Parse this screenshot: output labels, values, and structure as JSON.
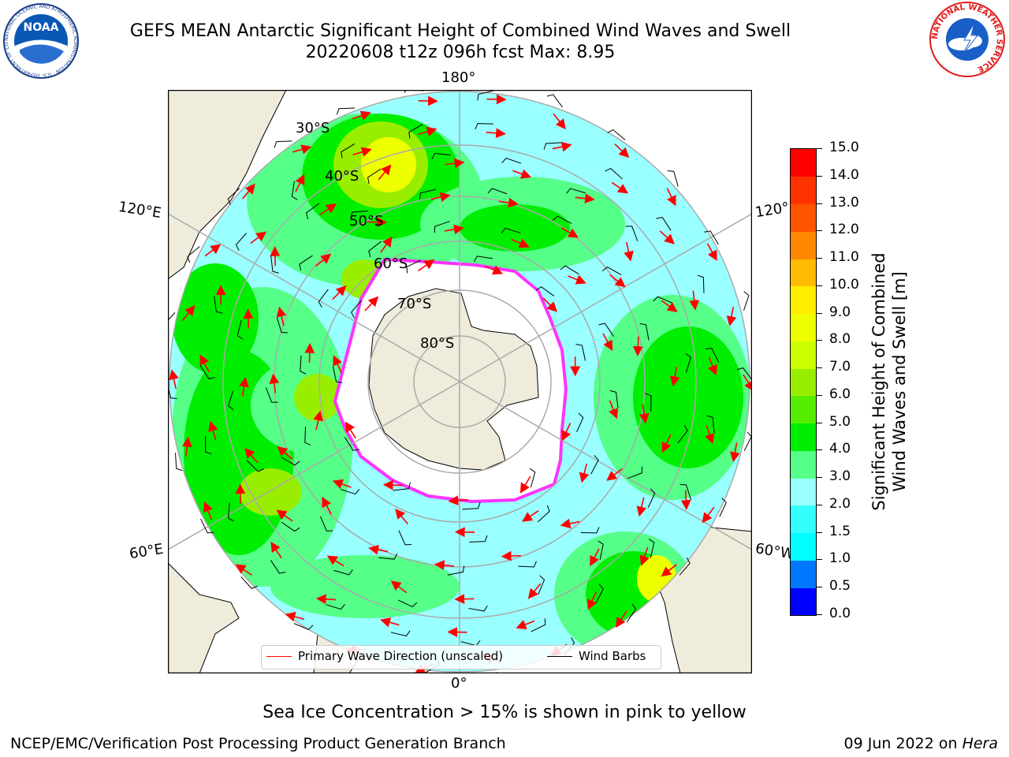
{
  "header": {
    "title": "GEFS MEAN Antarctic Significant Height of Combined Wind Waves and Swell",
    "subtitle": "20220608 t12z 096h fcst   Max: 8.95"
  },
  "logos": {
    "noaa": "NOAA",
    "noaa_ring": "NATIONAL OCEANIC AND ATMOSPHERIC ADMINISTRATION · U.S. DEPARTMENT OF COMMERCE",
    "nws_ring": "NATIONAL WEATHER SERVICE"
  },
  "map": {
    "longitude_labels": {
      "top": "180°",
      "bottom": "0°",
      "left_upper": "120°E",
      "right_upper": "120°",
      "left_lower": "60°E",
      "right_lower": "60°W"
    },
    "latitude_labels": [
      "30°S",
      "40°S",
      "50°S",
      "60°S",
      "70°S",
      "80°S"
    ],
    "land_color": "#efecdc",
    "ice_color": "#ffffff",
    "ice_edge_color": "#ff33ff"
  },
  "legend": {
    "wave_label": "Primary Wave Direction (unscaled)",
    "wave_color": "#ff0000",
    "barb_label": "Wind Barbs",
    "barb_color": "#000000"
  },
  "colorbar": {
    "label_line1": "Significant Height of Combined",
    "label_line2": "Wind Waves and Swell [m]",
    "ticks": [
      "0.0",
      "0.5",
      "1.0",
      "1.5",
      "2.0",
      "3.0",
      "4.0",
      "5.0",
      "6.0",
      "7.0",
      "8.0",
      "9.0",
      "10.0",
      "11.0",
      "12.0",
      "13.0",
      "14.0",
      "15.0"
    ],
    "colors": [
      "#0000ff",
      "#0077ff",
      "#00ffff",
      "#33ffff",
      "#99ffff",
      "#55ff88",
      "#00ee00",
      "#55ee00",
      "#99ee00",
      "#ccff00",
      "#eeff00",
      "#ffee00",
      "#ffbb00",
      "#ff8800",
      "#ff5500",
      "#ff3300",
      "#ff0000"
    ]
  },
  "footer": {
    "note": "Sea Ice Concentration > 15% is shown in pink to yellow",
    "credit": "NCEP/EMC/Verification Post Processing Product Generation Branch",
    "date": "09 Jun 2022 on ",
    "machine": "Hera"
  }
}
